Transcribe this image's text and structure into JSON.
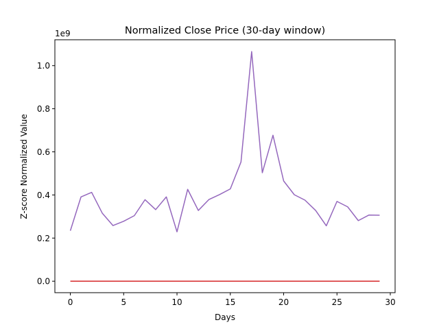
{
  "chart_data": {
    "type": "line",
    "title": "Normalized Close Price (30-day window)",
    "xlabel": "Days",
    "ylabel": "Z-score Normalized Value",
    "y_offset_label": "1e9",
    "xlim": [
      -1.45,
      30.45
    ],
    "ylim": [
      -0.0533,
      1.12
    ],
    "x_ticks": [
      0,
      5,
      10,
      15,
      20,
      25,
      30
    ],
    "y_ticks": [
      0.0,
      0.2,
      0.4,
      0.6,
      0.8,
      1.0
    ],
    "y_tick_labels": [
      "0.0",
      "0.2",
      "0.4",
      "0.6",
      "0.8",
      "1.0"
    ],
    "grid": false,
    "legend": "none",
    "series": [
      {
        "color": "#9467bd",
        "x": [
          0,
          1,
          2,
          3,
          4,
          5,
          6,
          7,
          8,
          9,
          10,
          11,
          12,
          13,
          14,
          15,
          16,
          17,
          18,
          19,
          20,
          21,
          22,
          23,
          24,
          25,
          26,
          27,
          28,
          29
        ],
        "y": [
          0.234,
          0.391,
          0.412,
          0.315,
          0.258,
          0.278,
          0.304,
          0.378,
          0.332,
          0.391,
          0.229,
          0.426,
          0.328,
          0.379,
          0.402,
          0.428,
          0.553,
          1.065,
          0.503,
          0.677,
          0.465,
          0.401,
          0.376,
          0.328,
          0.257,
          0.37,
          0.345,
          0.281,
          0.307,
          0.306
        ]
      },
      {
        "color": "#d62728",
        "x": [
          0,
          1,
          2,
          3,
          4,
          5,
          6,
          7,
          8,
          9,
          10,
          11,
          12,
          13,
          14,
          15,
          16,
          17,
          18,
          19,
          20,
          21,
          22,
          23,
          24,
          25,
          26,
          27,
          28,
          29
        ],
        "y": [
          0,
          0,
          0,
          0,
          0,
          0,
          0,
          0,
          0,
          0,
          0,
          0,
          0,
          0,
          0,
          0,
          0,
          0,
          0,
          0,
          0,
          0,
          0,
          0,
          0,
          0,
          0,
          0,
          0,
          0
        ]
      }
    ]
  }
}
